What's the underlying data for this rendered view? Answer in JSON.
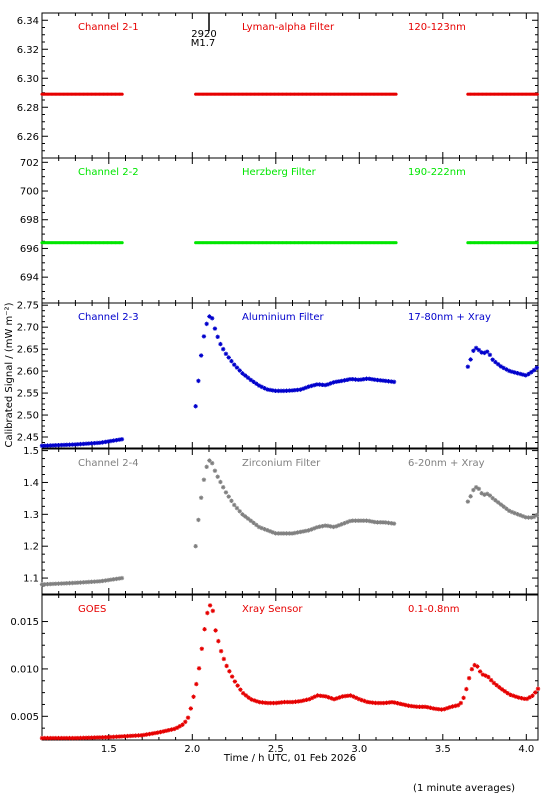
{
  "footnote": "(1 minute averages)",
  "chart_data": {
    "type": "scatter",
    "xlabel": "Time / h UTC, 01 Feb 2026",
    "ylabel": "Calibrated Signal / (mW m⁻²)",
    "xlim": [
      1.1,
      4.07
    ],
    "x_ticks": [
      "1.5",
      "2.0",
      "2.5",
      "3.0",
      "3.5",
      "4.0"
    ],
    "flare_marker": {
      "x": 2.1,
      "labels": [
        "2920",
        "M1.7"
      ]
    },
    "panels": [
      {
        "channel": "Channel 2-1",
        "filter": "Lyman-alpha Filter",
        "band": "120-123nm",
        "color": "#e60000",
        "ylim": [
          6.245,
          6.345
        ],
        "y_ticks": [
          "6.26",
          "6.28",
          "6.30",
          "6.32",
          "6.34"
        ],
        "series": [
          {
            "x": [
              1.1,
              1.58
            ],
            "y": [
              6.289,
              6.289
            ]
          },
          {
            "x": [
              2.02,
              3.22
            ],
            "y": [
              6.289,
              6.289
            ]
          },
          {
            "x": [
              3.65,
              4.07
            ],
            "y": [
              6.289,
              6.289
            ]
          }
        ]
      },
      {
        "channel": "Channel 2-2",
        "filter": "Herzberg Filter",
        "band": "190-222nm",
        "color": "#00e600",
        "ylim": [
          692.2,
          702.3
        ],
        "y_ticks": [
          "694",
          "696",
          "698",
          "700",
          "702"
        ],
        "series": [
          {
            "x": [
              1.1,
              1.58
            ],
            "y": [
              696.4,
              696.4
            ]
          },
          {
            "x": [
              2.02,
              3.22
            ],
            "y": [
              696.4,
              696.4
            ]
          },
          {
            "x": [
              3.65,
              4.07
            ],
            "y": [
              696.4,
              696.4
            ]
          }
        ]
      },
      {
        "channel": "Channel 2-3",
        "filter": "Aluminium Filter",
        "band": "17-80nm + Xray",
        "color": "#0000cc",
        "ylim": [
          2.425,
          2.755
        ],
        "y_ticks": [
          "2.45",
          "2.50",
          "2.55",
          "2.60",
          "2.65",
          "2.70",
          "2.75"
        ],
        "series": [
          {
            "x": [
              1.1,
              1.3,
              1.45,
              1.58
            ],
            "y": [
              2.43,
              2.433,
              2.437,
              2.445
            ]
          },
          {
            "x": [
              2.02,
              2.04,
              2.06,
              2.08,
              2.1,
              2.12,
              2.14,
              2.17,
              2.2,
              2.25,
              2.3,
              2.35,
              2.4,
              2.45,
              2.5,
              2.55,
              2.6,
              2.65,
              2.7,
              2.75,
              2.8,
              2.85,
              2.9,
              2.95,
              3.0,
              3.05,
              3.1,
              3.15,
              3.22
            ],
            "y": [
              2.52,
              2.59,
              2.66,
              2.7,
              2.725,
              2.72,
              2.69,
              2.66,
              2.64,
              2.615,
              2.595,
              2.58,
              2.567,
              2.558,
              2.555,
              2.555,
              2.556,
              2.558,
              2.565,
              2.57,
              2.568,
              2.575,
              2.578,
              2.582,
              2.58,
              2.583,
              2.58,
              2.578,
              2.575
            ]
          },
          {
            "x": [
              3.65,
              3.67,
              3.69,
              3.71,
              3.74,
              3.77,
              3.8,
              3.85,
              3.9,
              3.95,
              4.0,
              4.04,
              4.07
            ],
            "y": [
              2.61,
              2.63,
              2.655,
              2.65,
              2.64,
              2.645,
              2.625,
              2.61,
              2.6,
              2.595,
              2.59,
              2.6,
              2.61
            ]
          }
        ]
      },
      {
        "channel": "Channel 2-4",
        "filter": "Zirconium Filter",
        "band": "6-20nm + Xray",
        "color": "#808080",
        "ylim": [
          1.05,
          1.505
        ],
        "y_ticks": [
          "1.1",
          "1.2",
          "1.3",
          "1.4",
          "1.5"
        ],
        "series": [
          {
            "x": [
              1.1,
              1.3,
              1.45,
              1.58
            ],
            "y": [
              1.08,
              1.085,
              1.09,
              1.1
            ]
          },
          {
            "x": [
              2.02,
              2.04,
              2.06,
              2.08,
              2.1,
              2.12,
              2.14,
              2.17,
              2.2,
              2.25,
              2.3,
              2.35,
              2.4,
              2.45,
              2.5,
              2.55,
              2.6,
              2.65,
              2.7,
              2.75,
              2.8,
              2.85,
              2.9,
              2.95,
              3.0,
              3.05,
              3.1,
              3.15,
              3.22
            ],
            "y": [
              1.2,
              1.3,
              1.38,
              1.44,
              1.47,
              1.46,
              1.43,
              1.4,
              1.37,
              1.33,
              1.3,
              1.28,
              1.26,
              1.25,
              1.24,
              1.24,
              1.24,
              1.245,
              1.25,
              1.26,
              1.265,
              1.26,
              1.27,
              1.28,
              1.28,
              1.28,
              1.275,
              1.275,
              1.27
            ]
          },
          {
            "x": [
              3.65,
              3.67,
              3.69,
              3.71,
              3.74,
              3.77,
              3.8,
              3.85,
              3.9,
              3.95,
              4.0,
              4.04,
              4.07
            ],
            "y": [
              1.34,
              1.36,
              1.385,
              1.385,
              1.36,
              1.365,
              1.35,
              1.33,
              1.31,
              1.3,
              1.29,
              1.29,
              1.3
            ]
          }
        ]
      },
      {
        "channel": "GOES",
        "filter": "Xray Sensor",
        "band": "0.1-0.8nm",
        "color": "#e60000",
        "ylim": [
          0.0025,
          0.0178
        ],
        "y_ticks": [
          "0.005",
          "0.010",
          "0.015"
        ],
        "series": [
          {
            "x": [
              1.1,
              1.3,
              1.5,
              1.6,
              1.7,
              1.8,
              1.85,
              1.9,
              1.95,
              1.98,
              2.0,
              2.02,
              2.04,
              2.06,
              2.08,
              2.1,
              2.12,
              2.14,
              2.17,
              2.2,
              2.25,
              2.3,
              2.35,
              2.4,
              2.45,
              2.5,
              2.55,
              2.6,
              2.65,
              2.7,
              2.75,
              2.8,
              2.85,
              2.9,
              2.95,
              3.0,
              3.05,
              3.1,
              3.15,
              3.2,
              3.25,
              3.3,
              3.35,
              3.4,
              3.45,
              3.5,
              3.55,
              3.6,
              3.62,
              3.64,
              3.66,
              3.68,
              3.7,
              3.72,
              3.74,
              3.77,
              3.8,
              3.85,
              3.9,
              3.95,
              4.0,
              4.04,
              4.07
            ],
            "y": [
              0.0027,
              0.0027,
              0.0028,
              0.0029,
              0.003,
              0.0033,
              0.0035,
              0.0037,
              0.0042,
              0.005,
              0.0065,
              0.008,
              0.01,
              0.0125,
              0.015,
              0.0168,
              0.0165,
              0.014,
              0.012,
              0.0105,
              0.0088,
              0.0075,
              0.0068,
              0.0065,
              0.0064,
              0.0064,
              0.0065,
              0.0065,
              0.0066,
              0.0068,
              0.0072,
              0.0071,
              0.0068,
              0.0071,
              0.0072,
              0.0068,
              0.0065,
              0.0064,
              0.0064,
              0.0065,
              0.0063,
              0.0061,
              0.006,
              0.006,
              0.0058,
              0.0057,
              0.006,
              0.0062,
              0.0067,
              0.0078,
              0.0092,
              0.0103,
              0.0105,
              0.0098,
              0.0094,
              0.0092,
              0.0086,
              0.0079,
              0.0073,
              0.007,
              0.0068,
              0.0072,
              0.0079
            ]
          }
        ]
      }
    ]
  }
}
